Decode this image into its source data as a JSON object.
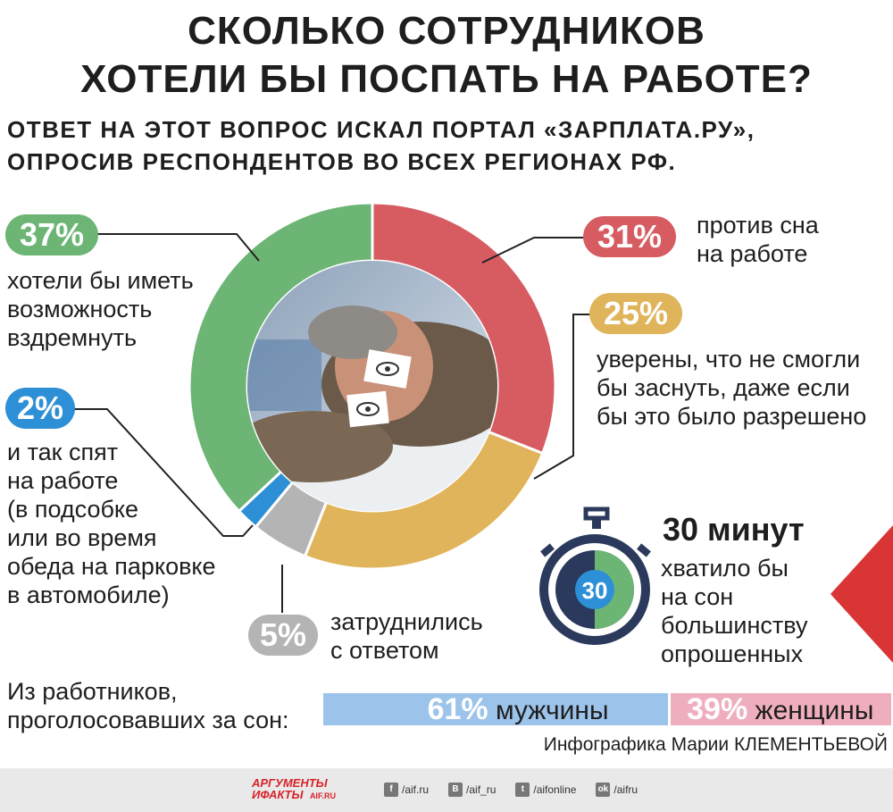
{
  "title_line1": "СКОЛЬКО СОТРУДНИКОВ",
  "title_line2": "ХОТЕЛИ БЫ ПОСПАТЬ НА РАБОТЕ?",
  "subtitle_line1": "ОТВЕТ НА ЭТОТ ВОПРОС ИСКАЛ ПОРТАЛ «ЗАРПЛАТА.РУ»,",
  "subtitle_line2": "ОПРОСИВ РЕСПОНДЕНТОВ ВО ВСЕХ РЕГИОНАХ РФ.",
  "chart_data": {
    "type": "pie",
    "title": "СКОЛЬКО СОТРУДНИКОВ ХОТЕЛИ БЫ ПОСПАТЬ НА РАБОТЕ?",
    "slices": [
      {
        "label": "против сна на работе",
        "value": 31,
        "color": "#d65c62"
      },
      {
        "label": "уверены, что не смогли бы заснуть, даже если бы это было разрешено",
        "value": 25,
        "color": "#e0b45a"
      },
      {
        "label": "затруднились с ответом",
        "value": 5,
        "color": "#b4b4b4"
      },
      {
        "label": "и так спят на работе (в подсобке или во время обеда на парковке в автомобиле)",
        "value": 2,
        "color": "#2d8fd5"
      },
      {
        "label": "хотели бы иметь возможность вздремнуть",
        "value": 37,
        "color": "#6cb574"
      }
    ]
  },
  "labels": {
    "green_pct": "37%",
    "green_lines": [
      "хотели бы иметь",
      "возможность",
      "вздремнуть"
    ],
    "red_pct": "31%",
    "red_lines": [
      "против сна",
      "на работе"
    ],
    "yellow_pct": "25%",
    "yellow_lines": [
      "уверены, что не смогли",
      "бы заснуть, даже если",
      "бы это было разрешено"
    ],
    "blue_pct": "2%",
    "blue_lines": [
      "и так спят",
      "на работе",
      "(в подсобке",
      "или во время",
      "обеда на парковке",
      "в автомобиле)"
    ],
    "gray_pct": "5%",
    "gray_lines": [
      "затруднились",
      "с ответом"
    ]
  },
  "timer": {
    "headline": "30 минут",
    "value": "30",
    "lines": [
      "хватило бы",
      "на сон",
      "большинству",
      "опрошенных"
    ]
  },
  "gender": {
    "label_lines": [
      "Из работников,",
      "проголосовавших за сон:"
    ],
    "male_pct": "61%",
    "male_label": "мужчины",
    "female_pct": "39%",
    "female_label": "женщины",
    "male_value": 61,
    "female_value": 39,
    "male_color": "#9cc3ea",
    "female_color": "#efaebd"
  },
  "credit": "Инфографика Марии КЛЕМЕНТЬЕВОЙ",
  "footer": {
    "logo_line1": "АРГУМЕНТЫ",
    "logo_line2": "ИФАКТЫ",
    "logo_site": "AIF.RU",
    "links": [
      {
        "icon": "f",
        "name": "facebook-icon",
        "text": "/aif.ru"
      },
      {
        "icon": "B",
        "name": "vk-icon",
        "text": "/aif_ru"
      },
      {
        "icon": "t",
        "name": "twitter-icon",
        "text": "/aifonline"
      },
      {
        "icon": "ok",
        "name": "odnoklassniki-icon",
        "text": "/aifru"
      }
    ]
  }
}
